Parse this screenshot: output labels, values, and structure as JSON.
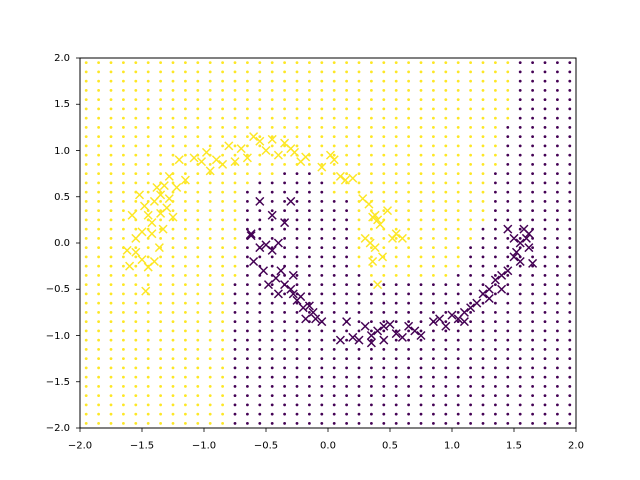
{
  "figure": {
    "background": "#ffffff"
  },
  "chart_data": {
    "type": "scatter",
    "title": "",
    "xlabel": "",
    "ylabel": "",
    "xlim": [
      -2.0,
      2.0
    ],
    "ylim": [
      -2.0,
      2.0
    ],
    "grid": false,
    "legend": "none",
    "x_ticks": [
      "−2.0",
      "−1.5",
      "−1.0",
      "−0.5",
      "0.0",
      "0.5",
      "1.0",
      "1.5",
      "2.0"
    ],
    "y_ticks": [
      "2.0",
      "1.5",
      "1.0",
      "0.5",
      "0.0",
      "−0.5",
      "−1.0",
      "−1.5",
      "−2.0"
    ],
    "x_tick_values": [
      -2.0,
      -1.5,
      -1.0,
      -0.5,
      0.0,
      0.5,
      1.0,
      1.5,
      2.0
    ],
    "y_tick_values": [
      2.0,
      1.5,
      1.0,
      0.5,
      0.0,
      -0.5,
      -1.0,
      -1.5,
      -2.0
    ],
    "colors": {
      "class0": "#fde725",
      "class1": "#440154"
    },
    "decision_grid": {
      "x_start": -1.95,
      "y_start": -1.95,
      "step": 0.1,
      "count": 40,
      "marker": "dot",
      "rows": [
        "0000000000001111111111111111111111111111",
        "0000000000001111111111111111111111111111",
        "0000000000001111111111111111111111111111",
        "0000000000001111111111111111111111111111",
        "0000000000001111111111111111111111111111",
        "0000000000001111111111111111111111111111",
        "0000000000001111111111111111111111111111",
        "0000000000001111111111111111111111111111",
        "0000000000001111111111111111111111111111",
        "0000000000001111111111111111111111111111",
        "0000000000001111111111111111111111111111",
        "0000000000001111111111111111111111111111",
        "0000000000001111111111111111111111111111",
        "0000000000001111111111111111111111111111",
        "0000000000001111111111111111111111111111",
        "0000000000001111111111111111111111111111",
        "0000000000000111111111100000001111111111",
        "0000000000000111111111000000000111111111",
        "0000000000000111111111000000000111111111",
        "0000000000000111111111000000000111111111",
        "0000000000000111111111000000000011111111",
        "0000000000000111111111000000000011111111",
        "0000000000000111111111000000000001111111",
        "0000000000000111111111000000000001111111",
        "0000000000000111111111000000000001111111",
        "0000000000000111111100000000000001111111",
        "0000000000000011111100000000000001111111",
        "0000000000000000111000000000000001111111",
        "0000000000000000000000000000000000111111",
        "0000000000000000000000000000000000111111",
        "0000000000000000000000000000000000111111",
        "0000000000000000000000000000000000111111",
        "0000000000000000000000000000000000111111",
        "0000000000000000000000000000000000011111",
        "0000000000000000000000000000000000011111",
        "0000000000000000000000000000000000011111",
        "0000000000000000000000000000000000011111",
        "0000000000000000000000000000000000011111",
        "0000000000000000000000000000000000011111",
        "0000000000000000000000000000000000011111"
      ]
    },
    "series": [
      {
        "class": 0,
        "marker": "x",
        "points": [
          [
            -1.62,
            -0.08
          ],
          [
            -1.55,
            0.05
          ],
          [
            -1.6,
            -0.25
          ],
          [
            -1.58,
            0.3
          ],
          [
            -1.52,
            0.52
          ],
          [
            -1.48,
            0.4
          ],
          [
            -1.5,
            -0.18
          ],
          [
            -1.45,
            -0.26
          ],
          [
            -1.42,
            0.22
          ],
          [
            -1.4,
            -0.2
          ],
          [
            -1.38,
            0.6
          ],
          [
            -1.35,
            0.32
          ],
          [
            -1.33,
            0.15
          ],
          [
            -1.3,
            0.38
          ],
          [
            -1.28,
            0.48
          ],
          [
            -1.25,
            0.28
          ],
          [
            -1.42,
            0.1
          ],
          [
            -1.36,
            -0.05
          ],
          [
            -1.55,
            -0.1
          ],
          [
            -1.5,
            0.12
          ],
          [
            -1.47,
            -0.52
          ],
          [
            -1.32,
            0.62
          ],
          [
            -1.28,
            0.72
          ],
          [
            -1.22,
            0.6
          ],
          [
            -1.15,
            0.68
          ],
          [
            -1.08,
            0.92
          ],
          [
            -1.02,
            0.88
          ],
          [
            -0.98,
            0.98
          ],
          [
            -0.95,
            0.78
          ],
          [
            -0.9,
            0.9
          ],
          [
            -0.85,
            0.85
          ],
          [
            -0.8,
            1.05
          ],
          [
            -0.75,
            0.88
          ],
          [
            -0.7,
            1.02
          ],
          [
            -0.65,
            0.92
          ],
          [
            -0.6,
            1.15
          ],
          [
            -0.55,
            1.1
          ],
          [
            -0.5,
            1.0
          ],
          [
            -0.45,
            1.12
          ],
          [
            -0.4,
            0.95
          ],
          [
            -0.35,
            1.08
          ],
          [
            -0.3,
            1.02
          ],
          [
            -0.27,
            0.98
          ],
          [
            -0.22,
            0.88
          ],
          [
            -0.18,
            0.93
          ],
          [
            -0.05,
            0.82
          ],
          [
            0.02,
            0.95
          ],
          [
            0.05,
            0.9
          ],
          [
            0.1,
            0.72
          ],
          [
            0.14,
            0.68
          ],
          [
            0.2,
            0.7
          ],
          [
            0.28,
            0.48
          ],
          [
            0.33,
            0.42
          ],
          [
            0.36,
            0.28
          ],
          [
            0.4,
            0.25
          ],
          [
            0.38,
            0.3
          ],
          [
            0.42,
            0.2
          ],
          [
            0.48,
            0.35
          ],
          [
            0.52,
            0.05
          ],
          [
            0.55,
            0.1
          ],
          [
            0.6,
            0.05
          ],
          [
            0.38,
            -0.05
          ],
          [
            0.36,
            -0.2
          ],
          [
            0.44,
            -0.15
          ],
          [
            0.4,
            -0.45
          ],
          [
            0.34,
            0.0
          ],
          [
            -1.35,
            0.52
          ],
          [
            -1.4,
            0.45
          ],
          [
            -1.45,
            0.3
          ],
          [
            -1.2,
            0.9
          ],
          [
            0.3,
            0.05
          ]
        ]
      },
      {
        "class": 1,
        "marker": "x",
        "points": [
          [
            -0.55,
            0.45
          ],
          [
            -0.45,
            0.3
          ],
          [
            -0.3,
            0.45
          ],
          [
            -0.35,
            0.22
          ],
          [
            -0.62,
            0.08
          ],
          [
            -0.55,
            -0.05
          ],
          [
            -0.5,
            -0.02
          ],
          [
            -0.45,
            -0.08
          ],
          [
            -0.4,
            0.0
          ],
          [
            -0.6,
            -0.2
          ],
          [
            -0.52,
            -0.3
          ],
          [
            -0.48,
            -0.45
          ],
          [
            -0.42,
            -0.38
          ],
          [
            -0.35,
            -0.45
          ],
          [
            -0.3,
            -0.5
          ],
          [
            -0.28,
            -0.55
          ],
          [
            -0.25,
            -0.62
          ],
          [
            -0.22,
            -0.58
          ],
          [
            -0.2,
            -0.7
          ],
          [
            -0.15,
            -0.68
          ],
          [
            -0.12,
            -0.75
          ],
          [
            -0.18,
            -0.82
          ],
          [
            -0.1,
            -0.82
          ],
          [
            -0.05,
            -0.85
          ],
          [
            0.15,
            -0.85
          ],
          [
            0.2,
            -1.02
          ],
          [
            0.25,
            -1.05
          ],
          [
            0.3,
            -0.9
          ],
          [
            0.35,
            -1.0
          ],
          [
            0.4,
            -0.95
          ],
          [
            0.45,
            -1.05
          ],
          [
            0.5,
            -0.88
          ],
          [
            0.55,
            -0.98
          ],
          [
            0.6,
            -1.02
          ],
          [
            0.65,
            -0.9
          ],
          [
            0.7,
            -0.95
          ],
          [
            0.75,
            -1.0
          ],
          [
            0.85,
            -0.85
          ],
          [
            0.9,
            -0.82
          ],
          [
            0.95,
            -0.9
          ],
          [
            1.0,
            -0.78
          ],
          [
            1.05,
            -0.82
          ],
          [
            1.1,
            -0.75
          ],
          [
            1.15,
            -0.7
          ],
          [
            1.2,
            -0.65
          ],
          [
            1.25,
            -0.55
          ],
          [
            1.3,
            -0.5
          ],
          [
            1.35,
            -0.4
          ],
          [
            1.4,
            -0.35
          ],
          [
            1.45,
            -0.3
          ],
          [
            1.5,
            -0.15
          ],
          [
            1.52,
            -0.1
          ],
          [
            1.55,
            -0.2
          ],
          [
            1.58,
            0.15
          ],
          [
            1.6,
            0.05
          ],
          [
            1.62,
            -0.05
          ],
          [
            1.65,
            -0.22
          ],
          [
            1.45,
            0.15
          ],
          [
            1.55,
            0.0
          ],
          [
            1.62,
            0.1
          ],
          [
            1.5,
            0.05
          ],
          [
            1.4,
            -0.5
          ],
          [
            1.3,
            -0.6
          ],
          [
            1.1,
            -0.85
          ],
          [
            0.45,
            -0.9
          ],
          [
            0.1,
            -1.05
          ],
          [
            0.35,
            -1.08
          ],
          [
            -0.28,
            -0.35
          ],
          [
            -0.62,
            0.1
          ],
          [
            -0.4,
            -0.55
          ],
          [
            -0.38,
            -0.3
          ]
        ]
      }
    ]
  }
}
